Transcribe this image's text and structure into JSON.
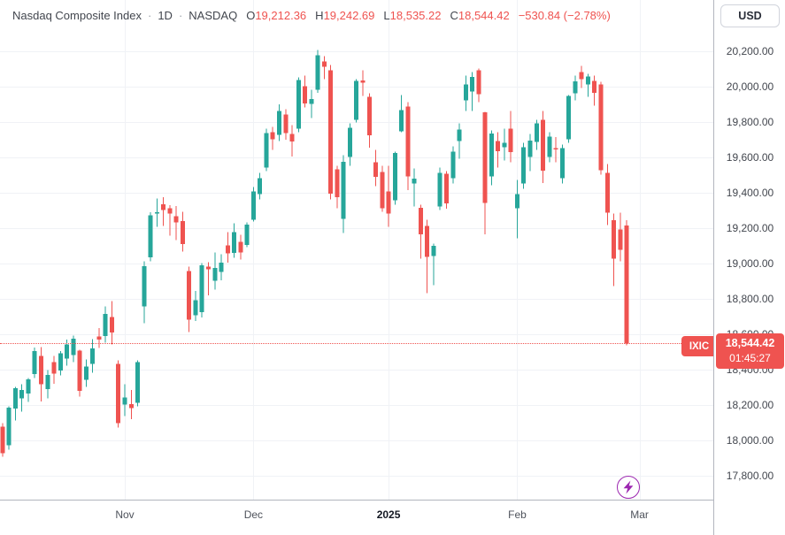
{
  "header": {
    "title": "Nasdaq Composite Index",
    "separator": "·",
    "interval": "1D",
    "exchange": "NASDAQ",
    "ohlc": [
      {
        "k": "O",
        "v": "19,212.36"
      },
      {
        "k": "H",
        "v": "19,242.69"
      },
      {
        "k": "L",
        "v": "18,535.22"
      },
      {
        "k": "C",
        "v": "18,544.42"
      }
    ],
    "change": "−530.84 (−2.78%)"
  },
  "price_axis": {
    "currency_button": "USD",
    "ticks": [
      {
        "value": 20200,
        "label": "20,200.00"
      },
      {
        "value": 20000,
        "label": "20,000.00"
      },
      {
        "value": 19800,
        "label": "19,800.00"
      },
      {
        "value": 19600,
        "label": "19,600.00"
      },
      {
        "value": 19400,
        "label": "19,400.00"
      },
      {
        "value": 19200,
        "label": "19,200.00"
      },
      {
        "value": 19000,
        "label": "19,000.00"
      },
      {
        "value": 18800,
        "label": "18,800.00"
      },
      {
        "value": 18600,
        "label": "18,600.00"
      },
      {
        "value": 18400,
        "label": "18,400.00"
      },
      {
        "value": 18200,
        "label": "18,200.00"
      },
      {
        "value": 18000,
        "label": "18,000.00"
      },
      {
        "value": 17800,
        "label": "17,800.00"
      }
    ],
    "price_label": {
      "symbol": "IXIC",
      "price": "18,544.42",
      "countdown": "01:45:27"
    }
  },
  "time_axis": {
    "labels": [
      {
        "text": "Nov",
        "candle_index": 20,
        "year": false
      },
      {
        "text": "Dec",
        "candle_index": 40,
        "year": false
      },
      {
        "text": "2025",
        "candle_index": 61,
        "year": true
      },
      {
        "text": "Feb",
        "candle_index": 81,
        "year": false
      },
      {
        "text": "Mar",
        "candle_index": 100,
        "year": false
      }
    ]
  },
  "colors": {
    "up": "#26a69a",
    "down": "#ef5350",
    "grid": "#f0f2f6",
    "axis_border": "#b2b5be",
    "accent_red": "#ef5350",
    "bolt_purple": "#9c27b0",
    "text": "#42464e"
  },
  "chart_data": {
    "type": "candlestick",
    "title": "Nasdaq Composite Index, 1D, NASDAQ, USD",
    "ylim": [
      17800,
      20200
    ],
    "grid": true,
    "last_close": 18544.42,
    "candles": [
      [
        "2024-10-04",
        18000,
        18160,
        17960,
        18138
      ],
      [
        "2024-10-07",
        18074,
        18095,
        17906,
        17924
      ],
      [
        "2024-10-08",
        17969,
        18190,
        17945,
        18182
      ],
      [
        "2024-10-09",
        18178,
        18300,
        18110,
        18292
      ],
      [
        "2024-10-10",
        18235,
        18316,
        18160,
        18282
      ],
      [
        "2024-10-11",
        18262,
        18350,
        18216,
        18343
      ],
      [
        "2024-10-14",
        18372,
        18522,
        18350,
        18502
      ],
      [
        "2024-10-15",
        18475,
        18525,
        18218,
        18316
      ],
      [
        "2024-10-16",
        18288,
        18394,
        18234,
        18367
      ],
      [
        "2024-10-17",
        18440,
        18474,
        18318,
        18374
      ],
      [
        "2024-10-18",
        18392,
        18502,
        18364,
        18490
      ],
      [
        "2024-10-21",
        18460,
        18568,
        18420,
        18540
      ],
      [
        "2024-10-22",
        18480,
        18590,
        18440,
        18573
      ],
      [
        "2024-10-23",
        18506,
        18510,
        18246,
        18277
      ],
      [
        "2024-10-24",
        18340,
        18455,
        18300,
        18415
      ],
      [
        "2024-10-25",
        18430,
        18570,
        18380,
        18518
      ],
      [
        "2024-10-28",
        18584,
        18632,
        18520,
        18567
      ],
      [
        "2024-10-29",
        18588,
        18754,
        18550,
        18713
      ],
      [
        "2024-10-30",
        18696,
        18786,
        18540,
        18608
      ],
      [
        "2024-10-31",
        18430,
        18450,
        18070,
        18095
      ],
      [
        "2024-11-01",
        18199,
        18316,
        18136,
        18240
      ],
      [
        "2024-11-04",
        18202,
        18282,
        18118,
        18180
      ],
      [
        "2024-11-05",
        18210,
        18450,
        18190,
        18439
      ],
      [
        "2024-11-06",
        18755,
        19010,
        18660,
        18983
      ],
      [
        "2024-11-07",
        19033,
        19287,
        19009,
        19269
      ],
      [
        "2024-11-08",
        19280,
        19366,
        19205,
        19287
      ],
      [
        "2024-11-11",
        19332,
        19372,
        19210,
        19299
      ],
      [
        "2024-11-12",
        19310,
        19327,
        19155,
        19281
      ],
      [
        "2024-11-13",
        19265,
        19322,
        19130,
        19230
      ],
      [
        "2024-11-14",
        19238,
        19290,
        19065,
        19108
      ],
      [
        "2024-11-15",
        18954,
        18979,
        18611,
        18680
      ],
      [
        "2024-11-18",
        18706,
        18842,
        18672,
        18791
      ],
      [
        "2024-11-19",
        18722,
        19000,
        18692,
        18988
      ],
      [
        "2024-11-20",
        18980,
        19005,
        18818,
        18966
      ],
      [
        "2024-11-21",
        18900,
        19060,
        18850,
        18972
      ],
      [
        "2024-11-22",
        18950,
        19050,
        18902,
        19003
      ],
      [
        "2024-11-25",
        19100,
        19175,
        19002,
        19055
      ],
      [
        "2024-11-26",
        19058,
        19224,
        19029,
        19175
      ],
      [
        "2024-11-27",
        19120,
        19160,
        19020,
        19060
      ],
      [
        "2024-11-29",
        19103,
        19230,
        19090,
        19218
      ],
      [
        "2024-12-02",
        19245,
        19430,
        19235,
        19404
      ],
      [
        "2024-12-03",
        19389,
        19510,
        19360,
        19481
      ],
      [
        "2024-12-04",
        19540,
        19760,
        19520,
        19735
      ],
      [
        "2024-12-05",
        19740,
        19770,
        19640,
        19700
      ],
      [
        "2024-12-06",
        19724,
        19898,
        19690,
        19860
      ],
      [
        "2024-12-09",
        19840,
        19870,
        19698,
        19736
      ],
      [
        "2024-12-10",
        19730,
        19780,
        19602,
        19688
      ],
      [
        "2024-12-11",
        19760,
        20050,
        19740,
        20034
      ],
      [
        "2024-12-12",
        20000,
        20060,
        19880,
        19902
      ],
      [
        "2024-12-13",
        19900,
        19980,
        19820,
        19927
      ],
      [
        "2024-12-16",
        19980,
        20204,
        19962,
        20174
      ],
      [
        "2024-12-17",
        20140,
        20170,
        20040,
        20109
      ],
      [
        "2024-12-18",
        20090,
        20120,
        19360,
        19393
      ],
      [
        "2024-12-19",
        19530,
        19550,
        19310,
        19372
      ],
      [
        "2024-12-20",
        19250,
        19610,
        19171,
        19572
      ],
      [
        "2024-12-23",
        19600,
        19790,
        19550,
        19765
      ],
      [
        "2024-12-24",
        19810,
        20040,
        19796,
        20031
      ],
      [
        "2024-12-26",
        20033,
        20090,
        19946,
        20020
      ],
      [
        "2024-12-27",
        19940,
        19960,
        19652,
        19722
      ],
      [
        "2024-12-30",
        19570,
        19640,
        19436,
        19487
      ],
      [
        "2024-12-31",
        19515,
        19550,
        19290,
        19311
      ],
      [
        "2025-01-02",
        19405,
        19550,
        19205,
        19281
      ],
      [
        "2025-01-03",
        19355,
        19630,
        19330,
        19622
      ],
      [
        "2025-01-06",
        19745,
        19950,
        19740,
        19865
      ],
      [
        "2025-01-07",
        19885,
        19910,
        19412,
        19490
      ],
      [
        "2025-01-08",
        19450,
        19535,
        19320,
        19478
      ],
      [
        "2025-01-10",
        19313,
        19330,
        19025,
        19162
      ],
      [
        "2025-01-13",
        19210,
        19245,
        18831,
        19035
      ],
      [
        "2025-01-14",
        19040,
        19110,
        18875,
        19098
      ],
      [
        "2025-01-15",
        19320,
        19540,
        19300,
        19511
      ],
      [
        "2025-01-16",
        19505,
        19520,
        19308,
        19338
      ],
      [
        "2025-01-17",
        19480,
        19660,
        19450,
        19630
      ],
      [
        "2025-01-21",
        19690,
        19790,
        19590,
        19756
      ],
      [
        "2025-01-22",
        19920,
        20060,
        19860,
        20009
      ],
      [
        "2025-01-23",
        19970,
        20080,
        19860,
        20053
      ],
      [
        "2025-01-24",
        20090,
        20100,
        19910,
        19954
      ],
      [
        "2025-01-27",
        19852,
        19856,
        19163,
        19341
      ],
      [
        "2025-01-28",
        19490,
        19750,
        19440,
        19733
      ],
      [
        "2025-01-29",
        19690,
        19740,
        19540,
        19632
      ],
      [
        "2025-01-30",
        19655,
        19760,
        19580,
        19681
      ],
      [
        "2025-01-31",
        19760,
        19860,
        19570,
        19627
      ],
      [
        "2025-02-03",
        19310,
        19470,
        19141,
        19391
      ],
      [
        "2025-02-04",
        19450,
        19680,
        19420,
        19654
      ],
      [
        "2025-02-05",
        19600,
        19730,
        19520,
        19692
      ],
      [
        "2025-02-06",
        19686,
        19810,
        19640,
        19791
      ],
      [
        "2025-02-07",
        19810,
        19860,
        19452,
        19523
      ],
      [
        "2025-02-10",
        19600,
        19740,
        19570,
        19714
      ],
      [
        "2025-02-11",
        19650,
        19712,
        19570,
        19643
      ],
      [
        "2025-02-12",
        19480,
        19670,
        19450,
        19650
      ],
      [
        "2025-02-13",
        19700,
        19950,
        19680,
        19945
      ],
      [
        "2025-02-14",
        19960,
        20060,
        19920,
        20027
      ],
      [
        "2025-02-18",
        20080,
        20115,
        19990,
        20041
      ],
      [
        "2025-02-19",
        20010,
        20070,
        19940,
        20056
      ],
      [
        "2025-02-20",
        20030,
        20060,
        19890,
        19962
      ],
      [
        "2025-02-21",
        20010,
        20025,
        19500,
        19524
      ],
      [
        "2025-02-24",
        19510,
        19560,
        19215,
        19286
      ],
      [
        "2025-02-25",
        19242,
        19280,
        18871,
        19026
      ],
      [
        "2025-02-26",
        19190,
        19285,
        19010,
        19075
      ],
      [
        "2025-02-27",
        19212.36,
        19242.69,
        18535.22,
        18544.42
      ]
    ]
  }
}
